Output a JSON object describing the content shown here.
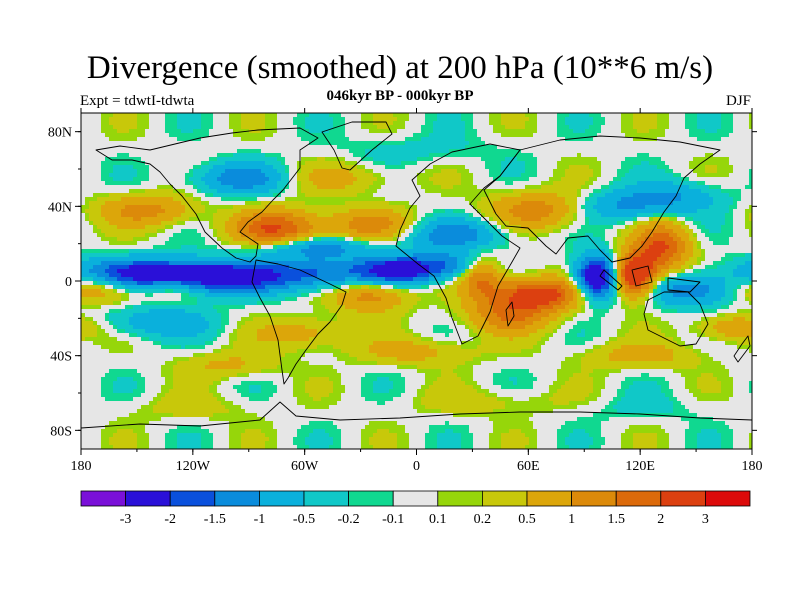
{
  "chart_data": {
    "type": "heatmap",
    "title": "Divergence (smoothed) at 200 hPa (10**6 m/s)",
    "subtitle": "046kyr BP - 000kyr BP",
    "left_label": "Expt = tdwtI-tdwta",
    "right_label": "DJF",
    "x_ticks": [
      {
        "value": -180,
        "label": "180"
      },
      {
        "value": -120,
        "label": "120W"
      },
      {
        "value": -60,
        "label": "60W"
      },
      {
        "value": 0,
        "label": "0"
      },
      {
        "value": 60,
        "label": "60E"
      },
      {
        "value": 120,
        "label": "120E"
      },
      {
        "value": 180,
        "label": "180"
      }
    ],
    "y_ticks": [
      {
        "value": 80,
        "label": "80N"
      },
      {
        "value": 40,
        "label": "40N"
      },
      {
        "value": 0,
        "label": "0"
      },
      {
        "value": -40,
        "label": "40S"
      },
      {
        "value": -80,
        "label": "80S"
      }
    ],
    "xlim": [
      -180,
      180
    ],
    "ylim": [
      -90,
      90
    ],
    "colorbar": {
      "colors": [
        "#7a10d8",
        "#2a10d8",
        "#0a50dc",
        "#0a8cdc",
        "#0ab0dc",
        "#10c8c8",
        "#10d890",
        "#e6e6e6",
        "#96d60a",
        "#c8c80a",
        "#dca60a",
        "#dc8a0a",
        "#dc6a0a",
        "#dc4010",
        "#dc0a0a"
      ],
      "labels": [
        "-3",
        "-2",
        "-1.5",
        "-1",
        "-0.5",
        "-0.2",
        "-0.1",
        "0.1",
        "0.2",
        "0.5",
        "1",
        "1.5",
        "2",
        "3"
      ]
    },
    "features": [
      {
        "lon": -150,
        "lat": 3,
        "sx": 26,
        "sy": 6,
        "a": -2.6
      },
      {
        "lon": -105,
        "lat": 2,
        "sx": 22,
        "sy": 6,
        "a": -2.3
      },
      {
        "lon": -55,
        "lat": 4,
        "sx": 22,
        "sy": 6,
        "a": -1.6
      },
      {
        "lon": -8,
        "lat": 6,
        "sx": 16,
        "sy": 5,
        "a": -2.4
      },
      {
        "lon": 20,
        "lat": 9,
        "sx": 14,
        "sy": 5,
        "a": -1.0
      },
      {
        "lon": 97,
        "lat": 2,
        "sx": 8,
        "sy": 8,
        "a": -3.2
      },
      {
        "lon": 150,
        "lat": -5,
        "sx": 18,
        "sy": 6,
        "a": -1.5
      },
      {
        "lon": -170,
        "lat": -3,
        "sx": 18,
        "sy": 6,
        "a": 1.6
      },
      {
        "lon": -130,
        "lat": -3,
        "sx": 12,
        "sy": 4,
        "a": 1.0
      },
      {
        "lon": -25,
        "lat": -8,
        "sx": 14,
        "sy": 6,
        "a": 1.3
      },
      {
        "lon": 65,
        "lat": -7,
        "sx": 16,
        "sy": 6,
        "a": 2.4
      },
      {
        "lon": 35,
        "lat": 2,
        "sx": 8,
        "sy": 8,
        "a": 1.5
      },
      {
        "lon": 50,
        "lat": -18,
        "sx": 16,
        "sy": 7,
        "a": 1.4
      },
      {
        "lon": 117,
        "lat": 3,
        "sx": 8,
        "sy": 8,
        "a": 3.2
      },
      {
        "lon": 132,
        "lat": 18,
        "sx": 10,
        "sy": 9,
        "a": 2.0
      },
      {
        "lon": -75,
        "lat": 28,
        "sx": 16,
        "sy": 7,
        "a": 2.0
      },
      {
        "lon": -25,
        "lat": 30,
        "sx": 18,
        "sy": 6,
        "a": 1.2
      },
      {
        "lon": 65,
        "lat": 38,
        "sx": 18,
        "sy": 7,
        "a": 1.3
      },
      {
        "lon": -145,
        "lat": 38,
        "sx": 18,
        "sy": 6,
        "a": 1.2
      },
      {
        "lon": -55,
        "lat": 18,
        "sx": 22,
        "sy": 4,
        "a": -1.3
      },
      {
        "lon": 20,
        "lat": 25,
        "sx": 20,
        "sy": 6,
        "a": -1.3
      },
      {
        "lon": -95,
        "lat": 55,
        "sx": 18,
        "sy": 6,
        "a": -1.3
      },
      {
        "lon": 110,
        "lat": 40,
        "sx": 18,
        "sy": 6,
        "a": -1.0
      },
      {
        "lon": 140,
        "lat": 45,
        "sx": 18,
        "sy": 6,
        "a": -0.9
      },
      {
        "lon": -140,
        "lat": -22,
        "sx": 22,
        "sy": 6,
        "a": -0.9
      },
      {
        "lon": -60,
        "lat": -28,
        "sx": 18,
        "sy": 6,
        "a": 0.8
      },
      {
        "lon": 0,
        "lat": -38,
        "sx": 22,
        "sy": 5,
        "a": 0.7
      },
      {
        "lon": 120,
        "lat": -40,
        "sx": 22,
        "sy": 5,
        "a": 0.7
      },
      {
        "lon": -100,
        "lat": -45,
        "sx": 18,
        "sy": 5,
        "a": 0.6
      },
      {
        "lon": 170,
        "lat": -25,
        "sx": 14,
        "sy": 5,
        "a": 1.0
      },
      {
        "lon": -40,
        "lat": 55,
        "sx": 22,
        "sy": 6,
        "a": 0.6
      },
      {
        "lon": 0,
        "lat": 70,
        "sx": 30,
        "sy": 6,
        "a": -0.3
      },
      {
        "lon": 40,
        "lat": -65,
        "sx": 30,
        "sy": 5,
        "a": 0.35
      },
      {
        "lon": -120,
        "lat": -68,
        "sx": 25,
        "sy": 5,
        "a": 0.3
      },
      {
        "lon": 120,
        "lat": -68,
        "sx": 25,
        "sy": 5,
        "a": -0.25
      }
    ]
  }
}
